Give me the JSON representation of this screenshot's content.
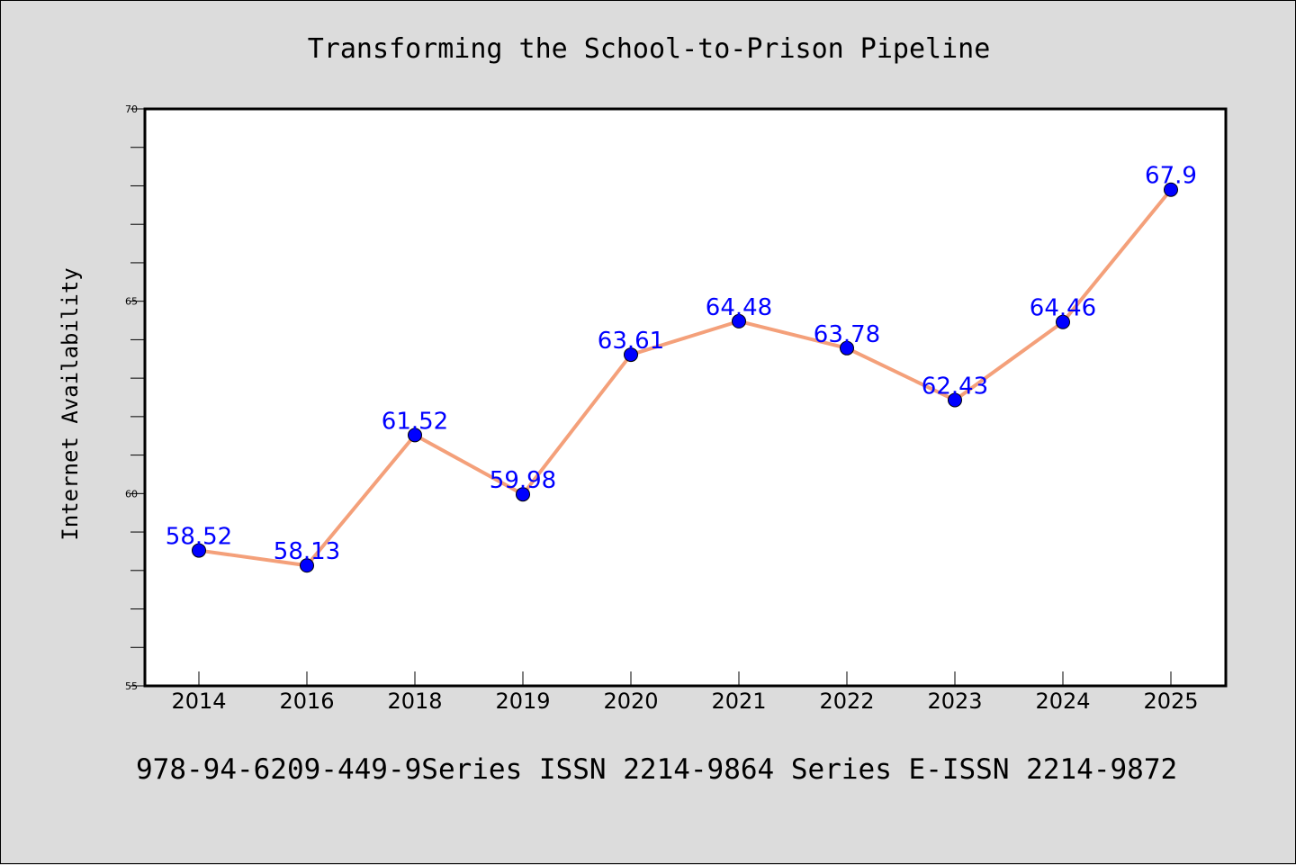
{
  "chart_data": {
    "type": "line",
    "title": "Transforming the School-to-Prison Pipeline",
    "xlabel": "",
    "ylabel": "Internet Availability",
    "categories": [
      "2014",
      "2016",
      "2018",
      "2019",
      "2020",
      "2021",
      "2022",
      "2023",
      "2024",
      "2025"
    ],
    "series": [
      {
        "values": [
          58.52,
          58.13,
          61.52,
          59.98,
          63.61,
          64.48,
          63.78,
          62.43,
          64.46,
          67.9
        ],
        "labels": [
          "58.52",
          "58.13",
          "61.52",
          "59.98",
          "63.61",
          "64.48",
          "63.78",
          "62.43",
          "64.46",
          "67.9"
        ],
        "line_color": "#f4a07a",
        "marker_color": "#0000ff"
      }
    ],
    "ylim": [
      55,
      70
    ],
    "yticks": [
      55,
      60,
      65,
      70
    ],
    "ytick_labels": [
      "55",
      "60",
      "65",
      "70"
    ],
    "grid": false,
    "legend": "none",
    "footer": "978-94-6209-449-9Series ISSN 2214-9864 Series E-ISSN 2214-9872"
  },
  "colors": {
    "background": "#dcdcdc",
    "plot_background": "#ffffff",
    "line": "#f4a07a",
    "marker": "#0000ff",
    "data_label": "#0000ff"
  }
}
